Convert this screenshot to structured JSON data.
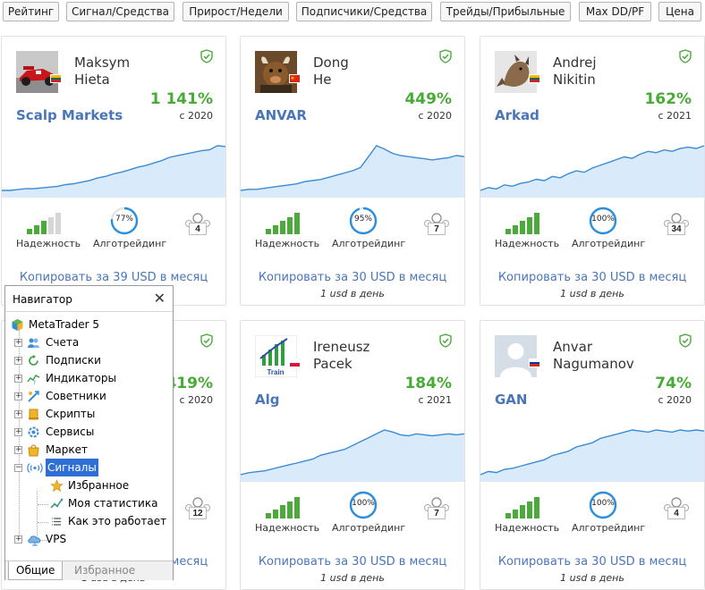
{
  "sort_buttons": [
    "Рейтинг",
    "Сигнал/Средства",
    "Прирост/Недели",
    "Подписчики/Средства",
    "Трейды/Прибыльные",
    "Max DD/PF",
    "Цена"
  ],
  "labels": {
    "reliability": "Надежность",
    "algotrading": "Алготрейдинг"
  },
  "colors": {
    "accent_blue": "#4a76b8",
    "growth_green": "#48ab36",
    "bar_green": "#4aab3a",
    "ring_blue": "#2b8fe0",
    "spark_line": "#3b8bd4",
    "spark_fill": "#d9ebfa",
    "selection": "#2e6fd6"
  },
  "cards": [
    {
      "first": "Maksym",
      "last": "Hieta",
      "avatar": "race-car",
      "flag": "lithuania",
      "growth": "1 141%",
      "since": "с 2020",
      "signal": "Scalp Markets",
      "reliability_bars": 3,
      "algo": "77%",
      "algo_value": 0.77,
      "subscribers": "4",
      "copy": "Копировать за 39 USD в месяц",
      "per_day": "",
      "spark": [
        2,
        2,
        3,
        4,
        4,
        5,
        6,
        7,
        9,
        10,
        12,
        14,
        17,
        19,
        22,
        24,
        27,
        30,
        32,
        35,
        38,
        42,
        44,
        46,
        48,
        50,
        51,
        56,
        55
      ]
    },
    {
      "first": "Dong",
      "last": "He",
      "avatar": "bull",
      "flag": "china",
      "growth": "449%",
      "since": "с 2020",
      "signal": "ANVAR",
      "reliability_bars": 5,
      "algo": "95%",
      "algo_value": 0.95,
      "subscribers": "7",
      "copy": "Копировать за 30 USD в месяц",
      "per_day": "1 usd в день",
      "spark": [
        4,
        5,
        5,
        6,
        7,
        8,
        9,
        10,
        12,
        13,
        14,
        16,
        18,
        20,
        22,
        25,
        35,
        45,
        42,
        38,
        36,
        35,
        34,
        33,
        32,
        33,
        34,
        36,
        35
      ]
    },
    {
      "first": "Andrej",
      "last": "Nikitin",
      "avatar": "lynx",
      "flag": "lithuania",
      "growth": "162%",
      "since": "с 2021",
      "signal": "Arkad",
      "reliability_bars": 5,
      "algo": "100%",
      "algo_value": 1.0,
      "subscribers": "34",
      "copy": "Копировать за 30 USD в месяц",
      "per_day": "1 usd в день",
      "spark": [
        4,
        6,
        5,
        8,
        7,
        9,
        10,
        12,
        11,
        14,
        13,
        16,
        18,
        17,
        20,
        22,
        24,
        26,
        28,
        27,
        30,
        32,
        31,
        33,
        32,
        34,
        35,
        34,
        36
      ]
    },
    {
      "first": "",
      "last": "",
      "avatar": "none",
      "flag": "none",
      "growth": "419%",
      "since": "с 2020",
      "signal": "",
      "reliability_bars": 5,
      "algo": "",
      "algo_value": 1.0,
      "subscribers": "12",
      "copy": "Копировать за 30 USD в месяц",
      "per_day": "1 usd в день",
      "spark": []
    },
    {
      "first": "Ireneusz",
      "last": "Pacek",
      "avatar": "train-logo",
      "flag": "poland",
      "growth": "184%",
      "since": "с 2021",
      "signal": "Alg",
      "reliability_bars": 5,
      "algo": "100%",
      "algo_value": 1.0,
      "subscribers": "7",
      "copy": "Копировать за 30 USD в месяц",
      "per_day": "1 usd в день",
      "spark": [
        0,
        2,
        3,
        4,
        6,
        8,
        10,
        12,
        14,
        16,
        20,
        22,
        24,
        26,
        30,
        34,
        38,
        42,
        46,
        44,
        41,
        40,
        42,
        41,
        40,
        41,
        42,
        41,
        42
      ]
    },
    {
      "first": "Anvar",
      "last": "Nagumanov",
      "avatar": "placeholder",
      "flag": "russia",
      "growth": "74%",
      "since": "с 2020",
      "signal": "GAN",
      "reliability_bars": 5,
      "algo": "100%",
      "algo_value": 1.0,
      "subscribers": "4",
      "copy": "Копировать за 30 USD в месяц",
      "per_day": "1 usd в день",
      "spark": [
        0,
        3,
        2,
        5,
        6,
        8,
        10,
        12,
        14,
        18,
        20,
        22,
        26,
        28,
        30,
        34,
        36,
        38,
        40,
        42,
        41,
        40,
        42,
        41,
        40,
        42,
        41,
        42,
        41
      ]
    }
  ],
  "navigator": {
    "title": "Навигатор",
    "close": "✕",
    "root": "MetaTrader 5",
    "items": [
      {
        "label": "Счета",
        "icon": "accounts-icon",
        "expander": "+"
      },
      {
        "label": "Подписки",
        "icon": "subscriptions-icon",
        "expander": "+"
      },
      {
        "label": "Индикаторы",
        "icon": "indicators-icon",
        "expander": "+"
      },
      {
        "label": "Советники",
        "icon": "experts-icon",
        "expander": "+"
      },
      {
        "label": "Скрипты",
        "icon": "scripts-icon",
        "expander": "+"
      },
      {
        "label": "Сервисы",
        "icon": "services-icon",
        "expander": "+"
      },
      {
        "label": "Маркет",
        "icon": "market-icon",
        "expander": "+"
      },
      {
        "label": "Сигналы",
        "icon": "signals-icon",
        "expander": "−"
      }
    ],
    "signal_children": [
      {
        "label": "Избранное",
        "icon": "star-icon"
      },
      {
        "label": "Моя статистика",
        "icon": "statistics-icon"
      },
      {
        "label": "Как это работает",
        "icon": "list-icon"
      }
    ],
    "vps": {
      "label": "VPS",
      "icon": "cloud-icon",
      "expander": "+"
    },
    "tabs": {
      "general": "Общие",
      "favorites": "Избранное"
    }
  }
}
